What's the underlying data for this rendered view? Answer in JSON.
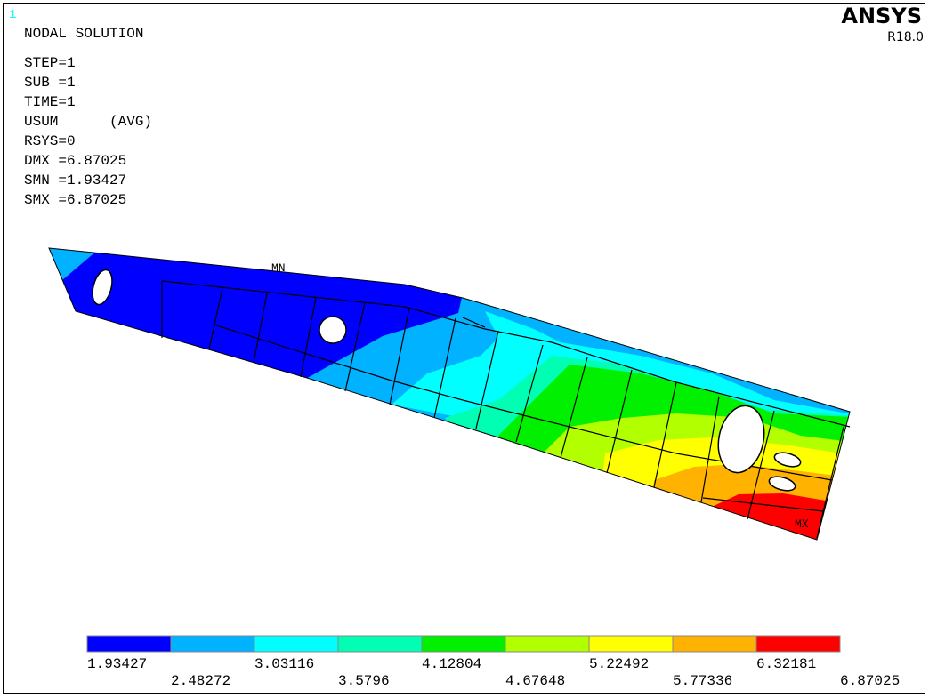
{
  "window_number": "1",
  "header": {
    "title": "NODAL SOLUTION",
    "lines": [
      "STEP=1",
      "SUB =1",
      "TIME=1",
      "USUM      (AVG)",
      "RSYS=0",
      "DMX =6.87025",
      "SMN =1.93427",
      "SMX =6.87025"
    ]
  },
  "logo": {
    "brand": "ANSYS",
    "version": "R18.0"
  },
  "markers": {
    "min": "MN",
    "max": "MX"
  },
  "legend": {
    "colors": [
      "#0000ff",
      "#00b2ff",
      "#00ffff",
      "#00ffb2",
      "#00f000",
      "#b2ff00",
      "#ffff00",
      "#ffb200",
      "#ff0000"
    ],
    "labels": [
      "1.93427",
      "2.48272",
      "3.03116",
      "3.5796",
      "4.12804",
      "4.67648",
      "5.22492",
      "5.77336",
      "6.32181",
      "6.87025"
    ]
  }
}
